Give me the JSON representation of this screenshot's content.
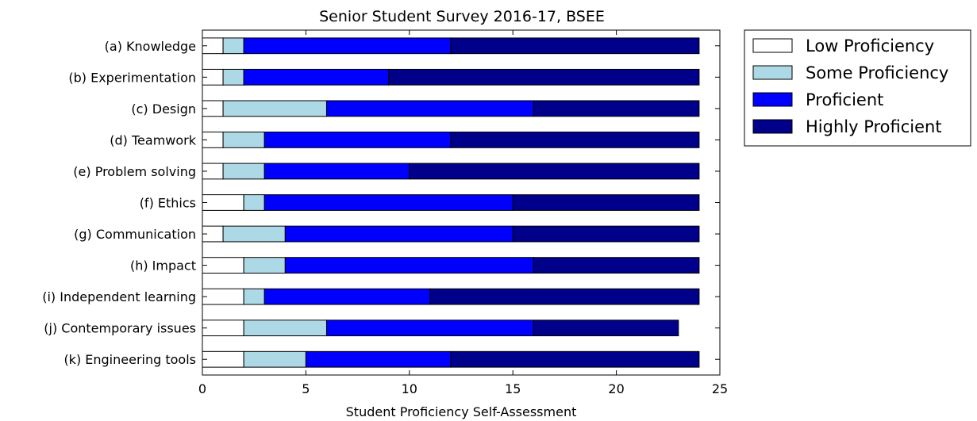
{
  "chart_data": {
    "type": "bar",
    "orientation": "horizontal",
    "stacked": true,
    "title": "Senior Student Survey 2016-17, BSEE",
    "xlabel": "Student Proficiency Self-Assessment",
    "ylabel": "",
    "xlim": [
      0,
      25
    ],
    "xticks": [
      "0",
      "5",
      "10",
      "15",
      "20",
      "25"
    ],
    "grid": false,
    "legend_position": "outside-right",
    "categories": [
      "(a) Knowledge",
      "(b) Experimentation",
      "(c) Design",
      "(d) Teamwork",
      "(e) Problem solving",
      "(f) Ethics",
      "(g) Communication",
      "(h) Impact",
      "(i) Independent learning",
      "(j) Contemporary issues",
      "(k) Engineering tools"
    ],
    "series": [
      {
        "name": "Low Proficiency",
        "color": "#ffffff",
        "values": [
          1,
          1,
          1,
          1,
          1,
          2,
          1,
          2,
          2,
          2,
          2
        ]
      },
      {
        "name": "Some Proficiency",
        "color": "#add8e6",
        "values": [
          1,
          1,
          5,
          2,
          2,
          1,
          3,
          2,
          1,
          4,
          3
        ]
      },
      {
        "name": "Proficient",
        "color": "#0000ff",
        "values": [
          10,
          7,
          10,
          9,
          7,
          12,
          11,
          12,
          8,
          10,
          7
        ]
      },
      {
        "name": "Highly Proficient",
        "color": "#00008b",
        "values": [
          12,
          15,
          8,
          12,
          14,
          9,
          9,
          8,
          13,
          7,
          12
        ]
      }
    ]
  }
}
